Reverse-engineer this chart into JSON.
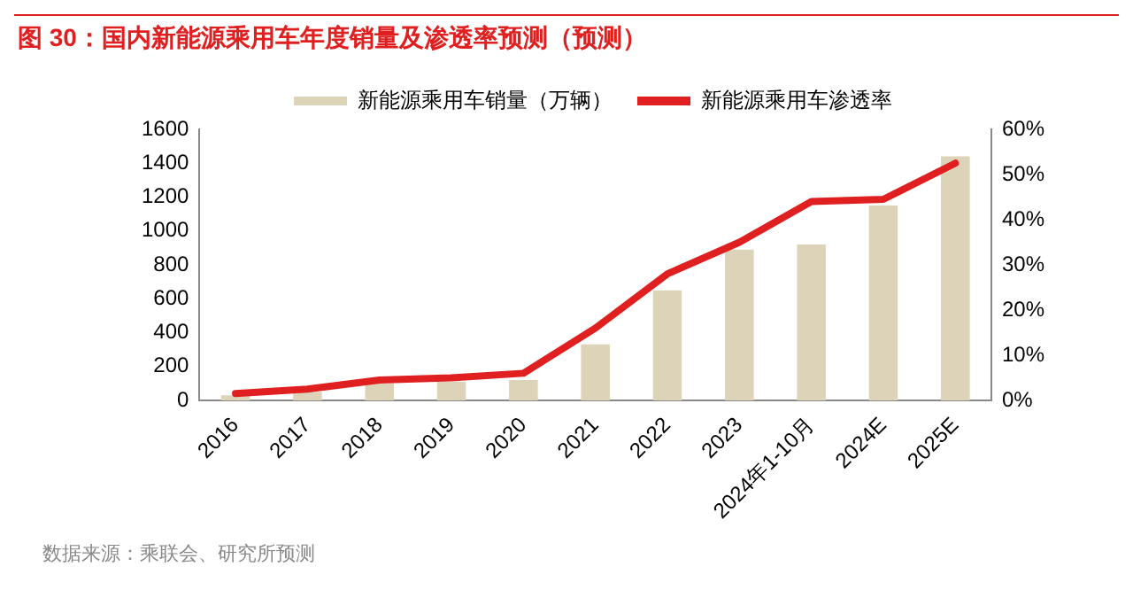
{
  "chart_data": {
    "type": "bar",
    "title": "图 30：国内新能源乘用车年度销量及渗透率预测（预测）",
    "categories": [
      "2016",
      "2017",
      "2018",
      "2019",
      "2020",
      "2021",
      "2022",
      "2023",
      "2024年1-10月",
      "2024E",
      "2025E"
    ],
    "series": [
      {
        "name": "新能源乘用车销量（万辆）",
        "color": "#ddd3b8",
        "values": [
          30,
          50,
          100,
          110,
          120,
          330,
          650,
          890,
          920,
          1150,
          1440
        ]
      },
      {
        "name": "新能源乘用车渗透率",
        "type": "line",
        "axis": "y2",
        "color": "#e02020",
        "values": [
          1.5,
          2.5,
          4.5,
          5,
          6,
          16,
          28,
          35,
          44,
          44.5,
          52.5
        ]
      }
    ],
    "ylim": [
      0,
      1600
    ],
    "yticks": [
      0,
      200,
      400,
      600,
      800,
      1000,
      1200,
      1400,
      1600
    ],
    "y2lim": [
      0,
      60
    ],
    "y2ticks": [
      {
        "value": 0,
        "label": "0%"
      },
      {
        "value": 10,
        "label": "10%"
      },
      {
        "value": 20,
        "label": "20%"
      },
      {
        "value": 30,
        "label": "30%"
      },
      {
        "value": 40,
        "label": "40%"
      },
      {
        "value": 50,
        "label": "50%"
      },
      {
        "value": 60,
        "label": "60%"
      }
    ],
    "grid": false,
    "legend": "top",
    "marker": "none",
    "annotations": [
      "数据来源：乘联会、研究所预测"
    ]
  }
}
